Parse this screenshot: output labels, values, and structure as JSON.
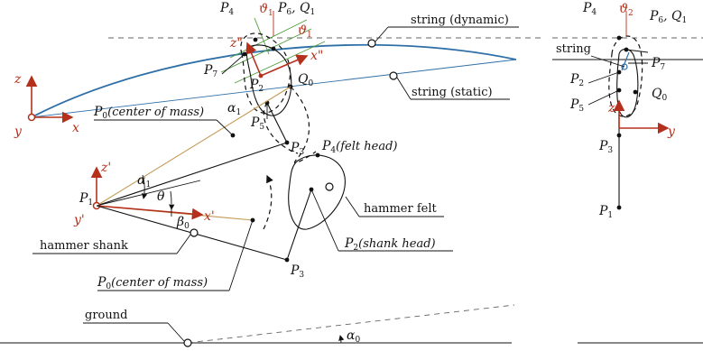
{
  "colors": {
    "axes": "#b5301c",
    "string": "#2f6fa7",
    "center_of_mass_line": "#c49a55",
    "tangent_lines": "#4e9a3a",
    "ink": "#111111"
  },
  "labels": {
    "P4_top": "P",
    "P4_top_sub": "4",
    "theta1": "ϑ",
    "theta1_sub": "1",
    "P6Q1": "P",
    "P6Q1_sub": "6",
    "P6Q1_rest": ", Q",
    "P6Q1_rest_sub": "1",
    "theta1b": "ϑ",
    "theta1b_sub": "1",
    "z_dd": "z\"",
    "x_dd": "x\"",
    "P7": "P",
    "P7_sub": "7",
    "P2": "P",
    "P2_sub": "2",
    "Q0": "Q",
    "Q0_sub": "0",
    "alpha1_top": "α",
    "alpha1_top_sub": "1",
    "P5": "P",
    "P5_sub": "5",
    "P0_top": "P",
    "P0_top_sub": "0",
    "P0_top_text": "(center of mass)",
    "string_dynamic": "string (dynamic)",
    "string_static": "string (static)",
    "z": "z",
    "x": "x",
    "y": "y",
    "P3_top": "P",
    "P3_top_sub": "3",
    "P4_felt": "P",
    "P4_felt_sub": "4",
    "P4_felt_text": "(felt head)",
    "z_p": "z'",
    "x_p": "x'",
    "y_p": "y'",
    "P1": "P",
    "P1_sub": "1",
    "alpha1": "α",
    "alpha1_sub": "1",
    "theta": "θ",
    "beta0": "β",
    "beta0_sub": "0",
    "hammer_felt": "hammer felt",
    "hammer_shank": "hammer shank",
    "P2_shank": "P",
    "P2_shank_sub": "2",
    "P2_shank_text": "(shank head)",
    "P3_bottom": "P",
    "P3_bottom_sub": "3",
    "P0_bottom": "P",
    "P0_bottom_sub": "0",
    "P0_bottom_text": "(center of mass)",
    "ground": "ground",
    "alpha0": "α",
    "alpha0_sub": "0",
    "side_P4": "P",
    "side_P4_sub": "4",
    "side_theta2": "ϑ",
    "side_theta2_sub": "2",
    "side_P6Q1": "P",
    "side_P6Q1_sub": "6",
    "side_P6Q1_rest": ", Q",
    "side_P6Q1_rest_sub": "1",
    "side_string": "string",
    "side_P7": "P",
    "side_P7_sub": "7",
    "side_P2": "P",
    "side_P2_sub": "2",
    "side_Q0": "Q",
    "side_Q0_sub": "0",
    "side_P5": "P",
    "side_P5_sub": "5",
    "side_z": "z",
    "side_y": "y",
    "side_P3": "P",
    "side_P3_sub": "3",
    "side_P1": "P",
    "side_P1_sub": "1"
  }
}
